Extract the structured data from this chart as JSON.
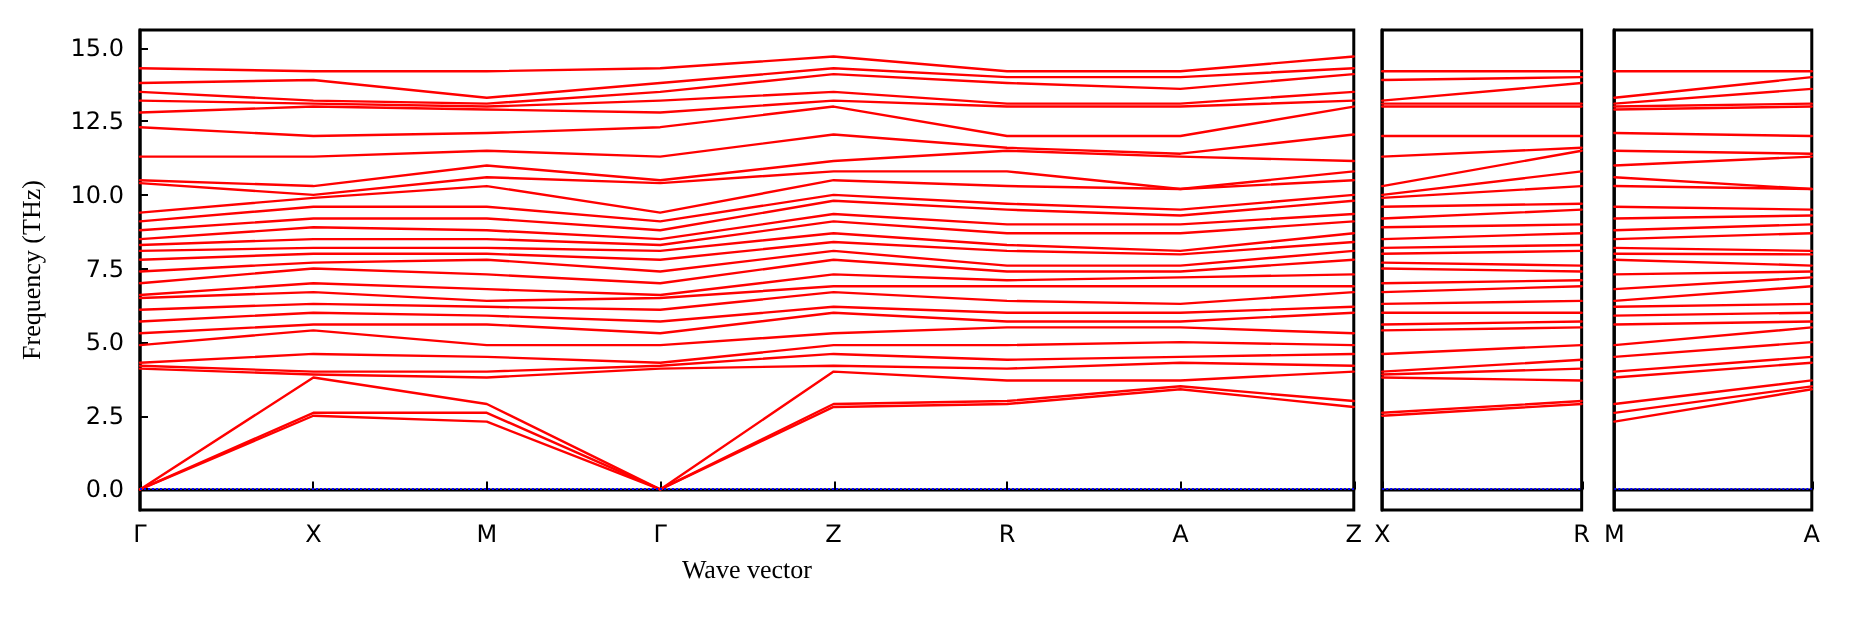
{
  "chart_data": [
    {
      "type": "line",
      "xlabel": "Wave vector",
      "ylabel": "Frequency (THz)",
      "marker": "none",
      "line_style": "solid",
      "categories": [
        "Γ",
        "X",
        "M",
        "Γ",
        "Z",
        "R",
        "A",
        "Z"
      ],
      "ylim": [
        -0.7,
        15.6
      ],
      "yticks": [
        {
          "value": 0,
          "label": "0.0"
        },
        {
          "value": 2.5,
          "label": "2.5"
        },
        {
          "value": 5,
          "label": "5.0"
        },
        {
          "value": 7.5,
          "label": "7.5"
        },
        {
          "value": 10,
          "label": "10.0"
        },
        {
          "value": 12.5,
          "label": "12.5"
        },
        {
          "value": 15,
          "label": "15.0"
        }
      ],
      "ref_lines": [
        {
          "axis": "y",
          "value": 0,
          "color": "#0000ff",
          "line_style": "dotted"
        }
      ],
      "series": [
        {
          "color": "#ff0000",
          "values": [
            0,
            2.5,
            2.3,
            0,
            2.8,
            2.9,
            3.4,
            2.8
          ]
        },
        {
          "color": "#ff0000",
          "values": [
            0,
            2.6,
            2.6,
            0,
            2.9,
            3.0,
            3.5,
            3.0
          ]
        },
        {
          "color": "#ff0000",
          "values": [
            0,
            3.8,
            2.9,
            0,
            4.0,
            3.7,
            3.7,
            4.0
          ]
        },
        {
          "color": "#ff0000",
          "values": [
            4.1,
            3.9,
            3.8,
            4.1,
            4.2,
            4.1,
            4.3,
            4.2
          ]
        },
        {
          "color": "#ff0000",
          "values": [
            4.2,
            4.0,
            4.0,
            4.2,
            4.6,
            4.4,
            4.5,
            4.6
          ]
        },
        {
          "color": "#ff0000",
          "values": [
            4.3,
            4.6,
            4.5,
            4.3,
            4.9,
            4.9,
            5.0,
            4.9
          ]
        },
        {
          "color": "#ff0000",
          "values": [
            4.9,
            5.4,
            4.9,
            4.9,
            5.3,
            5.5,
            5.5,
            5.3
          ]
        },
        {
          "color": "#ff0000",
          "values": [
            5.3,
            5.6,
            5.6,
            5.3,
            6.0,
            5.7,
            5.7,
            6.0
          ]
        },
        {
          "color": "#ff0000",
          "values": [
            5.7,
            6.0,
            5.9,
            5.7,
            6.2,
            6.0,
            6.0,
            6.2
          ]
        },
        {
          "color": "#ff0000",
          "values": [
            6.1,
            6.3,
            6.2,
            6.1,
            6.7,
            6.4,
            6.3,
            6.7
          ]
        },
        {
          "color": "#ff0000",
          "values": [
            6.5,
            6.7,
            6.4,
            6.5,
            6.9,
            6.9,
            6.9,
            6.9
          ]
        },
        {
          "color": "#ff0000",
          "values": [
            6.6,
            7.0,
            6.8,
            6.6,
            7.3,
            7.1,
            7.2,
            7.3
          ]
        },
        {
          "color": "#ff0000",
          "values": [
            7.0,
            7.5,
            7.3,
            7.0,
            7.8,
            7.4,
            7.4,
            7.8
          ]
        },
        {
          "color": "#ff0000",
          "values": [
            7.4,
            7.7,
            7.8,
            7.4,
            8.1,
            7.6,
            7.6,
            8.1
          ]
        },
        {
          "color": "#ff0000",
          "values": [
            7.8,
            8.0,
            8.0,
            7.8,
            8.4,
            8.1,
            7.98,
            8.4
          ]
        },
        {
          "color": "#ff0000",
          "values": [
            8.1,
            8.2,
            8.2,
            8.1,
            8.7,
            8.3,
            8.1,
            8.7
          ]
        },
        {
          "color": "#ff0000",
          "values": [
            8.3,
            8.5,
            8.5,
            8.3,
            9.1,
            8.7,
            8.7,
            9.1
          ]
        },
        {
          "color": "#ff0000",
          "values": [
            8.5,
            8.9,
            8.8,
            8.5,
            9.35,
            9.0,
            9.0,
            9.35
          ]
        },
        {
          "color": "#ff0000",
          "values": [
            8.8,
            9.2,
            9.2,
            8.8,
            9.8,
            9.5,
            9.3,
            9.8
          ]
        },
        {
          "color": "#ff0000",
          "values": [
            9.1,
            9.6,
            9.6,
            9.1,
            10.0,
            9.7,
            9.5,
            10.0
          ]
        },
        {
          "color": "#ff0000",
          "values": [
            9.4,
            9.9,
            10.3,
            9.4,
            10.5,
            10.3,
            10.2,
            10.5
          ]
        },
        {
          "color": "#ff0000",
          "values": [
            10.4,
            10.0,
            10.6,
            10.4,
            10.8,
            10.8,
            10.2,
            10.8
          ]
        },
        {
          "color": "#ff0000",
          "values": [
            10.5,
            10.3,
            11.0,
            10.5,
            11.15,
            11.5,
            11.3,
            11.15
          ]
        },
        {
          "color": "#ff0000",
          "values": [
            11.3,
            11.3,
            11.5,
            11.3,
            12.05,
            11.6,
            11.4,
            12.05
          ]
        },
        {
          "color": "#ff0000",
          "values": [
            12.3,
            12.0,
            12.1,
            12.3,
            13.0,
            12.0,
            12.0,
            13.0
          ]
        },
        {
          "color": "#ff0000",
          "values": [
            12.8,
            13.0,
            12.9,
            12.8,
            13.2,
            13.0,
            13.0,
            13.2
          ]
        },
        {
          "color": "#ff0000",
          "values": [
            13.2,
            13.1,
            13.0,
            13.2,
            13.5,
            13.1,
            13.1,
            13.5
          ]
        },
        {
          "color": "#ff0000",
          "values": [
            13.5,
            13.2,
            13.1,
            13.5,
            14.1,
            13.8,
            13.6,
            14.1
          ]
        },
        {
          "color": "#ff0000",
          "values": [
            13.8,
            13.9,
            13.3,
            13.8,
            14.3,
            14.0,
            14.0,
            14.3
          ]
        },
        {
          "color": "#ff0000",
          "values": [
            14.3,
            14.2,
            14.2,
            14.3,
            14.7,
            14.2,
            14.2,
            14.7
          ]
        }
      ]
    },
    {
      "type": "line",
      "marker": "none",
      "line_style": "solid",
      "tick_labels": "x",
      "categories": [
        "X",
        "R"
      ],
      "ylim": [
        -0.7,
        15.6
      ],
      "ref_lines": [
        {
          "axis": "y",
          "value": 0,
          "color": "#0000ff",
          "line_style": "dotted"
        }
      ],
      "series": [
        {
          "color": "#ff0000",
          "values": [
            2.5,
            2.9
          ]
        },
        {
          "color": "#ff0000",
          "values": [
            2.6,
            3.0
          ]
        },
        {
          "color": "#ff0000",
          "values": [
            3.8,
            3.7
          ]
        },
        {
          "color": "#ff0000",
          "values": [
            3.9,
            4.1
          ]
        },
        {
          "color": "#ff0000",
          "values": [
            4.0,
            4.4
          ]
        },
        {
          "color": "#ff0000",
          "values": [
            4.6,
            4.9
          ]
        },
        {
          "color": "#ff0000",
          "values": [
            5.4,
            5.5
          ]
        },
        {
          "color": "#ff0000",
          "values": [
            5.6,
            5.7
          ]
        },
        {
          "color": "#ff0000",
          "values": [
            6.0,
            6.0
          ]
        },
        {
          "color": "#ff0000",
          "values": [
            6.3,
            6.4
          ]
        },
        {
          "color": "#ff0000",
          "values": [
            6.7,
            6.9
          ]
        },
        {
          "color": "#ff0000",
          "values": [
            7.0,
            7.1
          ]
        },
        {
          "color": "#ff0000",
          "values": [
            7.5,
            7.4
          ]
        },
        {
          "color": "#ff0000",
          "values": [
            7.7,
            7.6
          ]
        },
        {
          "color": "#ff0000",
          "values": [
            8.0,
            8.1
          ]
        },
        {
          "color": "#ff0000",
          "values": [
            8.2,
            8.3
          ]
        },
        {
          "color": "#ff0000",
          "values": [
            8.5,
            8.7
          ]
        },
        {
          "color": "#ff0000",
          "values": [
            8.9,
            9.0
          ]
        },
        {
          "color": "#ff0000",
          "values": [
            9.2,
            9.5
          ]
        },
        {
          "color": "#ff0000",
          "values": [
            9.6,
            9.7
          ]
        },
        {
          "color": "#ff0000",
          "values": [
            9.9,
            10.3
          ]
        },
        {
          "color": "#ff0000",
          "values": [
            10.0,
            10.8
          ]
        },
        {
          "color": "#ff0000",
          "values": [
            10.3,
            11.5
          ]
        },
        {
          "color": "#ff0000",
          "values": [
            11.3,
            11.6
          ]
        },
        {
          "color": "#ff0000",
          "values": [
            12.0,
            12.0
          ]
        },
        {
          "color": "#ff0000",
          "values": [
            13.0,
            13.0
          ]
        },
        {
          "color": "#ff0000",
          "values": [
            13.1,
            13.1
          ]
        },
        {
          "color": "#ff0000",
          "values": [
            13.2,
            13.8
          ]
        },
        {
          "color": "#ff0000",
          "values": [
            13.9,
            14.0
          ]
        },
        {
          "color": "#ff0000",
          "values": [
            14.2,
            14.2
          ]
        }
      ]
    },
    {
      "type": "line",
      "marker": "none",
      "line_style": "solid",
      "tick_labels": "x",
      "categories": [
        "M",
        "A"
      ],
      "ylim": [
        -0.7,
        15.6
      ],
      "ref_lines": [
        {
          "axis": "y",
          "value": 0,
          "color": "#0000ff",
          "line_style": "dotted"
        }
      ],
      "series": [
        {
          "color": "#ff0000",
          "values": [
            2.3,
            3.4
          ]
        },
        {
          "color": "#ff0000",
          "values": [
            2.6,
            3.5
          ]
        },
        {
          "color": "#ff0000",
          "values": [
            2.9,
            3.7
          ]
        },
        {
          "color": "#ff0000",
          "values": [
            3.8,
            4.3
          ]
        },
        {
          "color": "#ff0000",
          "values": [
            4.0,
            4.5
          ]
        },
        {
          "color": "#ff0000",
          "values": [
            4.5,
            5.0
          ]
        },
        {
          "color": "#ff0000",
          "values": [
            4.9,
            5.5
          ]
        },
        {
          "color": "#ff0000",
          "values": [
            5.6,
            5.7
          ]
        },
        {
          "color": "#ff0000",
          "values": [
            5.9,
            6.0
          ]
        },
        {
          "color": "#ff0000",
          "values": [
            6.2,
            6.3
          ]
        },
        {
          "color": "#ff0000",
          "values": [
            6.4,
            6.9
          ]
        },
        {
          "color": "#ff0000",
          "values": [
            6.8,
            7.2
          ]
        },
        {
          "color": "#ff0000",
          "values": [
            7.3,
            7.4
          ]
        },
        {
          "color": "#ff0000",
          "values": [
            7.8,
            7.6
          ]
        },
        {
          "color": "#ff0000",
          "values": [
            8.0,
            7.98
          ]
        },
        {
          "color": "#ff0000",
          "values": [
            8.2,
            8.1
          ]
        },
        {
          "color": "#ff0000",
          "values": [
            8.5,
            8.7
          ]
        },
        {
          "color": "#ff0000",
          "values": [
            8.8,
            9.0
          ]
        },
        {
          "color": "#ff0000",
          "values": [
            9.2,
            9.3
          ]
        },
        {
          "color": "#ff0000",
          "values": [
            9.6,
            9.5
          ]
        },
        {
          "color": "#ff0000",
          "values": [
            10.3,
            10.2
          ]
        },
        {
          "color": "#ff0000",
          "values": [
            10.6,
            10.2
          ]
        },
        {
          "color": "#ff0000",
          "values": [
            11.0,
            11.3
          ]
        },
        {
          "color": "#ff0000",
          "values": [
            11.5,
            11.4
          ]
        },
        {
          "color": "#ff0000",
          "values": [
            12.1,
            12.0
          ]
        },
        {
          "color": "#ff0000",
          "values": [
            12.9,
            13.0
          ]
        },
        {
          "color": "#ff0000",
          "values": [
            13.0,
            13.1
          ]
        },
        {
          "color": "#ff0000",
          "values": [
            13.1,
            13.6
          ]
        },
        {
          "color": "#ff0000",
          "values": [
            13.3,
            14.0
          ]
        },
        {
          "color": "#ff0000",
          "values": [
            14.2,
            14.2
          ]
        }
      ]
    }
  ]
}
